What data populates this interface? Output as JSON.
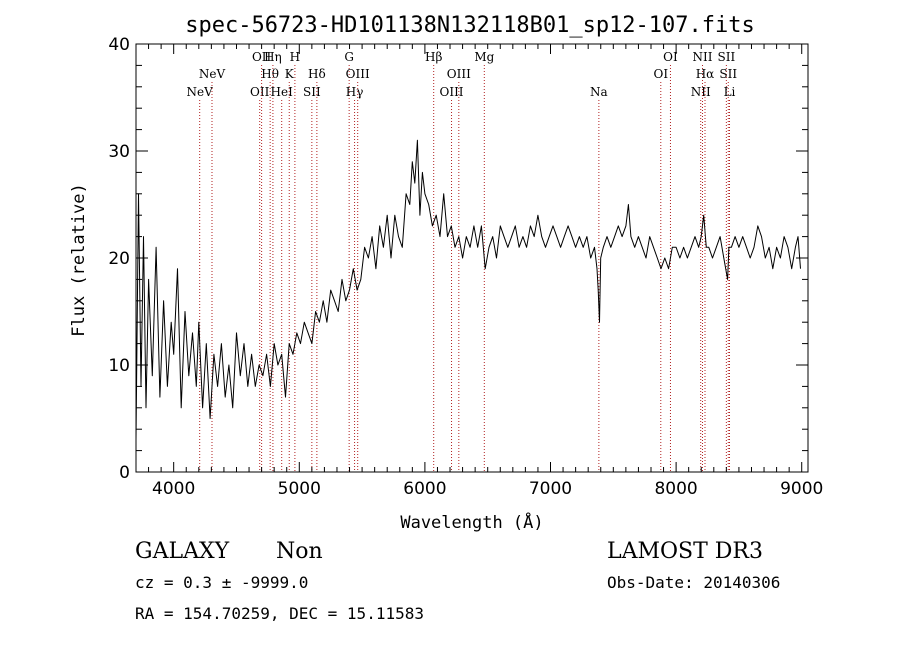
{
  "chart_data": {
    "type": "line",
    "title": "spec-56723-HD101138N132118B01_sp12-107.fits",
    "xlabel": "Wavelength (Å)",
    "ylabel": "Flux (relative)",
    "xlim": [
      3700,
      9050
    ],
    "ylim": [
      0,
      40
    ],
    "xticks": [
      4000,
      5000,
      6000,
      7000,
      8000,
      9000
    ],
    "yticks": [
      0,
      10,
      20,
      30,
      40
    ],
    "grid": false,
    "series": [
      {
        "x": [
          3700,
          3720,
          3740,
          3760,
          3780,
          3800,
          3830,
          3860,
          3890,
          3920,
          3950,
          3980,
          4000,
          4030,
          4060,
          4090,
          4120,
          4150,
          4180,
          4200,
          4230,
          4260,
          4290,
          4320,
          4350,
          4380,
          4410,
          4440,
          4470,
          4500,
          4530,
          4560,
          4590,
          4620,
          4650,
          4680,
          4710,
          4740,
          4770,
          4800,
          4830,
          4860,
          4890,
          4920,
          4950,
          4980,
          5010,
          5040,
          5070,
          5100,
          5130,
          5160,
          5190,
          5220,
          5250,
          5280,
          5310,
          5340,
          5370,
          5400,
          5430,
          5460,
          5490,
          5520,
          5550,
          5580,
          5610,
          5640,
          5670,
          5700,
          5730,
          5760,
          5790,
          5820,
          5850,
          5880,
          5900,
          5920,
          5940,
          5960,
          5980,
          6000,
          6030,
          6060,
          6090,
          6120,
          6150,
          6180,
          6210,
          6240,
          6270,
          6300,
          6330,
          6360,
          6390,
          6420,
          6450,
          6480,
          6510,
          6540,
          6570,
          6600,
          6630,
          6660,
          6690,
          6720,
          6750,
          6780,
          6810,
          6840,
          6870,
          6900,
          6930,
          6960,
          6990,
          7020,
          7050,
          7080,
          7110,
          7140,
          7170,
          7200,
          7230,
          7260,
          7290,
          7320,
          7350,
          7370,
          7380,
          7390,
          7400,
          7420,
          7450,
          7480,
          7510,
          7540,
          7570,
          7600,
          7620,
          7640,
          7670,
          7700,
          7730,
          7760,
          7790,
          7820,
          7850,
          7880,
          7910,
          7940,
          7970,
          8000,
          8030,
          8060,
          8090,
          8120,
          8150,
          8180,
          8200,
          8220,
          8240,
          8260,
          8290,
          8320,
          8350,
          8380,
          8410,
          8420,
          8440,
          8470,
          8500,
          8530,
          8560,
          8590,
          8620,
          8650,
          8680,
          8710,
          8740,
          8770,
          8800,
          8830,
          8860,
          8890,
          8920,
          8950,
          8970,
          8990
        ],
        "y": [
          3,
          26,
          8,
          22,
          6,
          18,
          9,
          21,
          7,
          16,
          8,
          14,
          11,
          19,
          6,
          15,
          9,
          13,
          8,
          14,
          6,
          12,
          5,
          11,
          8,
          12,
          7,
          10,
          6,
          13,
          9,
          12,
          8,
          11,
          8,
          10,
          9,
          11,
          8,
          12,
          10,
          11,
          7,
          12,
          11,
          13,
          12,
          14,
          13,
          12,
          15,
          14,
          16,
          14,
          17,
          16,
          15,
          18,
          16,
          17,
          19,
          17,
          18,
          21,
          20,
          22,
          19,
          23,
          21,
          24,
          20,
          24,
          22,
          21,
          26,
          25,
          29,
          27,
          31,
          24,
          28,
          26,
          25,
          23,
          24,
          22,
          26,
          22,
          23,
          21,
          22,
          20,
          22,
          21,
          23,
          21,
          23,
          19,
          21,
          22,
          20,
          23,
          22,
          21,
          22,
          23,
          21,
          22,
          21,
          23,
          22,
          24,
          22,
          21,
          22,
          23,
          22,
          21,
          22,
          23,
          22,
          21,
          22,
          21,
          22,
          20,
          21,
          19,
          17,
          14,
          20,
          21,
          22,
          21,
          22,
          23,
          22,
          23,
          25,
          22,
          21,
          22,
          21,
          20,
          22,
          21,
          20,
          19,
          20,
          19,
          21,
          21,
          20,
          21,
          20,
          21,
          22,
          21,
          22,
          24,
          21,
          21,
          20,
          21,
          22,
          20,
          18,
          21,
          21,
          22,
          21,
          22,
          21,
          20,
          21,
          23,
          22,
          20,
          21,
          19,
          21,
          20,
          22,
          21,
          19,
          21,
          22,
          19
        ]
      }
    ],
    "line_markers": [
      {
        "x": 4207,
        "label": "NeV",
        "row": 2
      },
      {
        "x": 4305,
        "label": "NeV",
        "row": 1
      },
      {
        "x": 4685,
        "label": "OII",
        "row": 2
      },
      {
        "x": 4700,
        "label": "OII",
        "row": 0
      },
      {
        "x": 4768,
        "label": "Hθ",
        "row": 1
      },
      {
        "x": 4790,
        "label": "Hη",
        "row": 0
      },
      {
        "x": 4860,
        "label": "HeI",
        "row": 2
      },
      {
        "x": 4920,
        "label": "K",
        "row": 1
      },
      {
        "x": 4965,
        "label": "H",
        "row": 0
      },
      {
        "x": 5100,
        "label": "SII",
        "row": 2
      },
      {
        "x": 5140,
        "label": "Hδ",
        "row": 1
      },
      {
        "x": 5397,
        "label": "G",
        "row": 0
      },
      {
        "x": 5440,
        "label": "Hγ",
        "row": 2
      },
      {
        "x": 5465,
        "label": "OIII",
        "row": 1
      },
      {
        "x": 6070,
        "label": "Hβ",
        "row": 0
      },
      {
        "x": 6212,
        "label": "OIII",
        "row": 2
      },
      {
        "x": 6270,
        "label": "OIII",
        "row": 1
      },
      {
        "x": 6473,
        "label": "Mg",
        "row": 0
      },
      {
        "x": 7385,
        "label": "Na",
        "row": 2
      },
      {
        "x": 7878,
        "label": "OI",
        "row": 1
      },
      {
        "x": 7955,
        "label": "OI",
        "row": 0
      },
      {
        "x": 8196,
        "label": "NII",
        "row": 2
      },
      {
        "x": 8210,
        "label": "NII",
        "row": 0
      },
      {
        "x": 8230,
        "label": "Hα",
        "row": 1
      },
      {
        "x": 8400,
        "label": "SII",
        "row": 0
      },
      {
        "x": 8415,
        "label": "SII",
        "row": 1
      },
      {
        "x": 8425,
        "label": "Li",
        "row": 2
      }
    ]
  },
  "info": {
    "class_label": "GALAXY",
    "subclass_label": "Non",
    "survey_label": "LAMOST DR3",
    "cz_text": "cz = 0.3 ± -9999.0",
    "obs_date_text": "Obs-Date: 20140306",
    "coords_text": "RA = 154.70259, DEC =  15.11583"
  },
  "colors": {
    "spectrum": "#000000",
    "marker_line": "#b22222",
    "axes": "#000000"
  }
}
